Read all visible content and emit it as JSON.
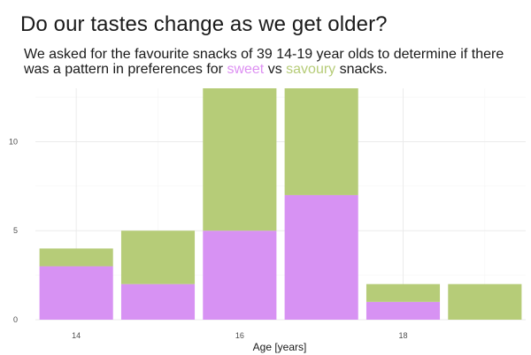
{
  "title": "Do our tastes change as we get older?",
  "subtitle": {
    "text_before": "We asked for the favourite snacks of 39 14-19 year olds to determine if there was a pattern in preferences for ",
    "sweet_word": "sweet",
    "middle": " vs ",
    "savoury_word": "savoury",
    "text_after": " snacks."
  },
  "chart_data": {
    "type": "bar",
    "stacked": true,
    "title": "Do our tastes change as we get older?",
    "xlabel": "Age [years]",
    "ylabel": "",
    "x": [
      14,
      15,
      16,
      17,
      18,
      19
    ],
    "x_ticks": [
      "14",
      "16",
      "18"
    ],
    "y_ticks": [
      "0",
      "5",
      "10"
    ],
    "ylim": [
      0,
      13
    ],
    "xlim": [
      13.5,
      19.5
    ],
    "grid": true,
    "legend": "none",
    "series": [
      {
        "name": "sweet",
        "color": "#d792f3",
        "values": [
          3,
          2,
          5,
          7,
          1,
          0
        ]
      },
      {
        "name": "savoury",
        "color": "#b6cc78",
        "values": [
          1,
          3,
          8,
          6,
          1,
          2
        ]
      }
    ]
  }
}
